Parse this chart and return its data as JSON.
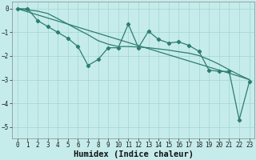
{
  "title": "",
  "xlabel": "Humidex (Indice chaleur)",
  "ylabel": "",
  "bg_color": "#c5ecea",
  "grid_color": "#a8d8d4",
  "line_color": "#2e7d6e",
  "x_data": [
    0,
    1,
    2,
    3,
    4,
    5,
    6,
    7,
    8,
    9,
    10,
    11,
    12,
    13,
    14,
    15,
    16,
    17,
    18,
    19,
    20,
    21,
    22,
    23
  ],
  "y_main": [
    0.0,
    0.0,
    -0.5,
    -0.75,
    -1.0,
    -1.25,
    -1.6,
    -2.4,
    -2.15,
    -1.65,
    -1.65,
    -0.65,
    -1.65,
    -0.95,
    -1.3,
    -1.45,
    -1.4,
    -1.55,
    -1.8,
    -2.6,
    -2.65,
    -2.65,
    -4.7,
    -3.1
  ],
  "y_line1": [
    0.0,
    -0.13,
    -0.26,
    -0.39,
    -0.52,
    -0.65,
    -0.78,
    -0.91,
    -1.04,
    -1.17,
    -1.3,
    -1.43,
    -1.56,
    -1.69,
    -1.82,
    -1.95,
    -2.08,
    -2.21,
    -2.34,
    -2.47,
    -2.6,
    -2.73,
    -2.86,
    -3.0
  ],
  "y_line2": [
    0.0,
    -0.05,
    -0.1,
    -0.2,
    -0.42,
    -0.65,
    -0.88,
    -1.1,
    -1.35,
    -1.5,
    -1.6,
    -1.6,
    -1.62,
    -1.65,
    -1.7,
    -1.75,
    -1.82,
    -1.88,
    -1.98,
    -2.15,
    -2.35,
    -2.58,
    -2.8,
    -3.0
  ],
  "ylim": [
    -5.5,
    0.3
  ],
  "xlim": [
    -0.5,
    23.5
  ],
  "yticks": [
    0,
    -1,
    -2,
    -3,
    -4,
    -5
  ],
  "xticks": [
    0,
    1,
    2,
    3,
    4,
    5,
    6,
    7,
    8,
    9,
    10,
    11,
    12,
    13,
    14,
    15,
    16,
    17,
    18,
    19,
    20,
    21,
    22,
    23
  ],
  "tick_fontsize": 5.5,
  "xlabel_fontsize": 7.5
}
